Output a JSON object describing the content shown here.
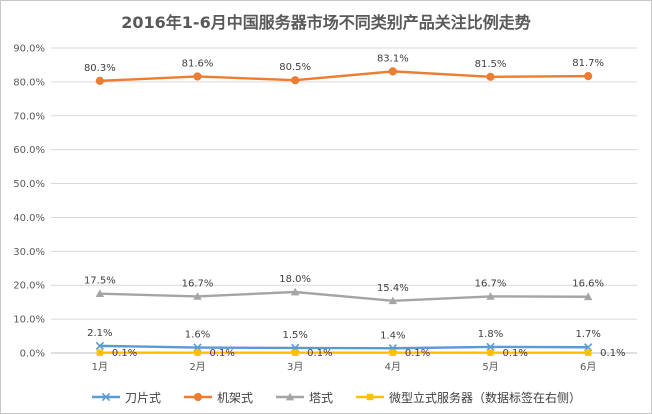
{
  "chart_data": {
    "type": "line",
    "title": "2016年1-6月中国服务器市场不同类别产品关注比例走势",
    "categories": [
      "1月",
      "2月",
      "3月",
      "4月",
      "5月",
      "6月"
    ],
    "y_ticks": [
      "0.0%",
      "10.0%",
      "20.0%",
      "30.0%",
      "40.0%",
      "50.0%",
      "60.0%",
      "70.0%",
      "80.0%",
      "90.0%"
    ],
    "ylim": [
      0,
      90
    ],
    "grid": true,
    "legend_position": "bottom",
    "series": [
      {
        "name": "刀片式",
        "values": [
          2.1,
          1.6,
          1.5,
          1.4,
          1.8,
          1.7
        ],
        "labels": [
          "2.1%",
          "1.6%",
          "1.5%",
          "1.4%",
          "1.8%",
          "1.7%"
        ],
        "color": "#5b9bd5",
        "marker": "x",
        "label_position": "above"
      },
      {
        "name": "机架式",
        "values": [
          80.3,
          81.6,
          80.5,
          83.1,
          81.5,
          81.7
        ],
        "labels": [
          "80.3%",
          "81.6%",
          "80.5%",
          "83.1%",
          "81.5%",
          "81.7%"
        ],
        "color": "#ed7d31",
        "marker": "circle",
        "label_position": "above"
      },
      {
        "name": "塔式",
        "values": [
          17.5,
          16.7,
          18.0,
          15.4,
          16.7,
          16.6
        ],
        "labels": [
          "17.5%",
          "16.7%",
          "18.0%",
          "15.4%",
          "16.7%",
          "16.6%"
        ],
        "color": "#a5a5a5",
        "marker": "triangle",
        "label_position": "above"
      },
      {
        "name": "微型立式服务器（数据标签在右侧）",
        "values": [
          0.1,
          0.1,
          0.1,
          0.1,
          0.1,
          0.1
        ],
        "labels": [
          "0.1%",
          "0.1%",
          "0.1%",
          "0.1%",
          "0.1%",
          "0.1%"
        ],
        "color": "#ffc000",
        "marker": "square",
        "label_position": "right"
      }
    ]
  }
}
